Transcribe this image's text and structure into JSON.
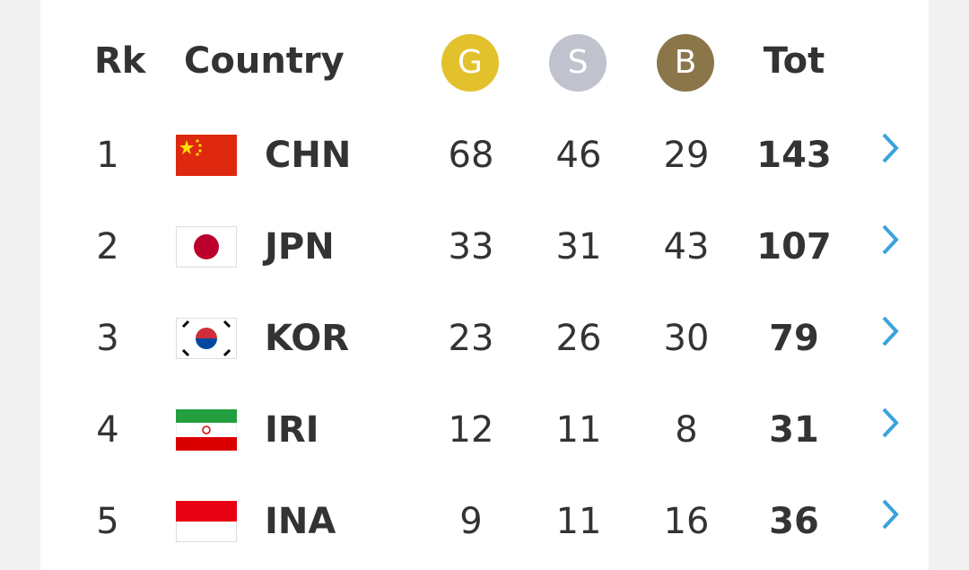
{
  "header": {
    "rank": "Rk",
    "country": "Country",
    "gold": "G",
    "silver": "S",
    "bronze": "B",
    "total": "Tot"
  },
  "table": {
    "rows": [
      [
        "1",
        "CHN",
        "68",
        "46",
        "29",
        "143"
      ],
      [
        "2",
        "JPN",
        "33",
        "31",
        "43",
        "107"
      ],
      [
        "3",
        "KOR",
        "23",
        "26",
        "30",
        "79"
      ],
      [
        "4",
        "IRI",
        "12",
        "11",
        "8",
        "31"
      ],
      [
        "5",
        "INA",
        "9",
        "11",
        "16",
        "36"
      ]
    ]
  }
}
